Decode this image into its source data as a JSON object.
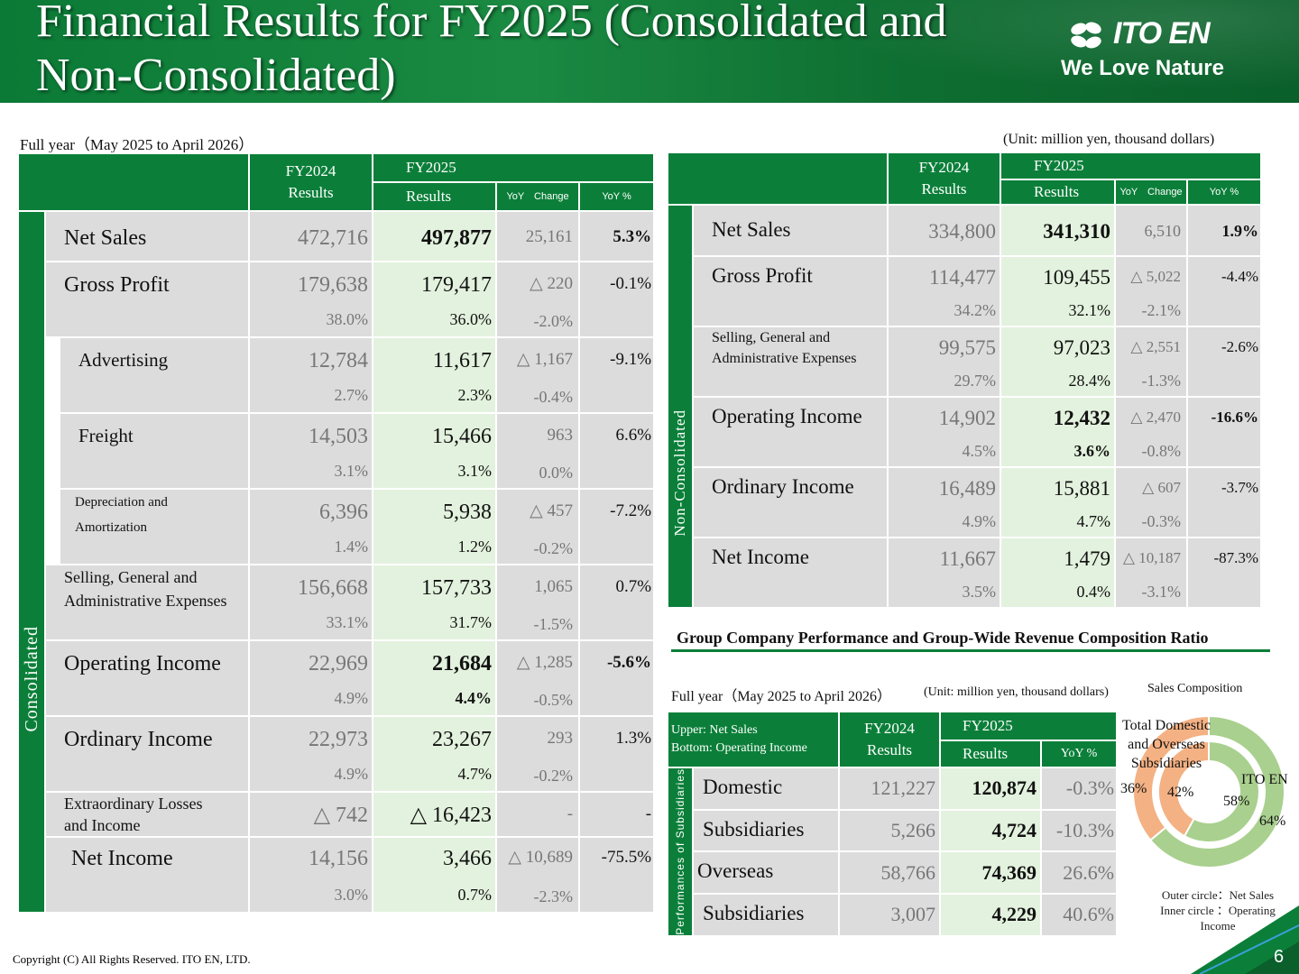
{
  "header": {
    "title_line1": "Financial Results for FY2025 (Consolidated and",
    "title_line2": "Non-Consolidated)",
    "logo_name": "ITO EN",
    "logo_tagline": "We Love Nature",
    "logo_icon": "leaf-logo-icon"
  },
  "captions": {
    "period": "Full year（May 2025 to April 2026）",
    "unit": "(Unit: million yen, thousand dollars)"
  },
  "consolidated": {
    "side_label": "Consolidated",
    "headers": {
      "fy2024": "FY2024",
      "fy2024_sub": "Results",
      "fy2025": "FY2025",
      "fy2025_sub": "Results",
      "yoy_change": "YoY　Change",
      "yoy_pct": "YoY %"
    },
    "rows": [
      {
        "label": "Net Sales",
        "fy2024": "472,716",
        "fy2025": "497,877",
        "change": "25,161",
        "pct": "5.3%"
      },
      {
        "label": "Gross Profit",
        "fy2024": "179,638",
        "fy2024_ratio": "38.0%",
        "fy2025": "179,417",
        "fy2025_ratio": "36.0%",
        "change": "△ 220",
        "change_ratio": "-2.0%",
        "pct": "-0.1%"
      },
      {
        "label": "Advertising",
        "fy2024": "12,784",
        "fy2024_ratio": "2.7%",
        "fy2025": "11,617",
        "fy2025_ratio": "2.3%",
        "change": "△ 1,167",
        "change_ratio": "-0.4%",
        "pct": "-9.1%"
      },
      {
        "label": "Freight",
        "fy2024": "14,503",
        "fy2024_ratio": "3.1%",
        "fy2025": "15,466",
        "fy2025_ratio": "3.1%",
        "change": "963",
        "change_ratio": "0.0%",
        "pct": "6.6%"
      },
      {
        "label_line1": "Depreciation and",
        "label_line2": "Amortization",
        "fy2024": "6,396",
        "fy2024_ratio": "1.4%",
        "fy2025": "5,938",
        "fy2025_ratio": "1.2%",
        "change": "△ 457",
        "change_ratio": "-0.2%",
        "pct": "-7.2%"
      },
      {
        "label_line1": "Selling, General and",
        "label_line2": "Administrative Expenses",
        "fy2024": "156,668",
        "fy2024_ratio": "33.1%",
        "fy2025": "157,733",
        "fy2025_ratio": "31.7%",
        "change": "1,065",
        "change_ratio": "-1.5%",
        "pct": "0.7%"
      },
      {
        "label": "Operating Income",
        "fy2024": "22,969",
        "fy2024_ratio": "4.9%",
        "fy2025": "21,684",
        "fy2025_ratio": "4.4%",
        "change": "△ 1,285",
        "change_ratio": "-0.5%",
        "pct": "-5.6%"
      },
      {
        "label": "Ordinary Income",
        "fy2024": "22,973",
        "fy2024_ratio": "4.9%",
        "fy2025": "23,267",
        "fy2025_ratio": "4.7%",
        "change": "293",
        "change_ratio": "-0.2%",
        "pct": "1.3%"
      },
      {
        "label_line1": "Extraordinary Losses",
        "label_line2": "and Income",
        "fy2024": "△ 742",
        "fy2025": "△ 16,423",
        "change": "-",
        "pct": "-"
      },
      {
        "label": "Net Income",
        "fy2024": "14,156",
        "fy2024_ratio": "3.0%",
        "fy2025": "3,466",
        "fy2025_ratio": "0.7%",
        "change": "△ 10,689",
        "change_ratio": "-2.3%",
        "pct": "-75.5%"
      }
    ]
  },
  "non_consolidated": {
    "side_label": "Non-Consolidated",
    "headers": {
      "fy2024": "FY2024",
      "fy2024_sub": "Results",
      "fy2025": "FY2025",
      "fy2025_sub": "Results",
      "yoy_change": "YoY　Change",
      "yoy_pct": "YoY %"
    },
    "rows": [
      {
        "label": "Net Sales",
        "fy2024": "334,800",
        "fy2025": "341,310",
        "change": "6,510",
        "pct": "1.9%"
      },
      {
        "label": "Gross Profit",
        "fy2024": "114,477",
        "fy2024_ratio": "34.2%",
        "fy2025": "109,455",
        "fy2025_ratio": "32.1%",
        "change": "△ 5,022",
        "change_ratio": "-2.1%",
        "pct": "-4.4%"
      },
      {
        "label_line1": "Selling, General and",
        "label_line2": "Administrative Expenses",
        "fy2024": "99,575",
        "fy2024_ratio": "29.7%",
        "fy2025": "97,023",
        "fy2025_ratio": "28.4%",
        "change": "△ 2,551",
        "change_ratio": "-1.3%",
        "pct": "-2.6%"
      },
      {
        "label": "Operating Income",
        "fy2024": "14,902",
        "fy2024_ratio": "4.5%",
        "fy2025": "12,432",
        "fy2025_ratio": "3.6%",
        "change": "△ 2,470",
        "change_ratio": "-0.8%",
        "pct": "-16.6%"
      },
      {
        "label": "Ordinary Income",
        "fy2024": "16,489",
        "fy2024_ratio": "4.9%",
        "fy2025": "15,881",
        "fy2025_ratio": "4.7%",
        "change": "△ 607",
        "change_ratio": "-0.3%",
        "pct": "-3.7%"
      },
      {
        "label": "Net Income",
        "fy2024": "11,667",
        "fy2024_ratio": "3.5%",
        "fy2025": "1,479",
        "fy2025_ratio": "0.4%",
        "change": "△ 10,187",
        "change_ratio": "-3.1%",
        "pct": "-87.3%"
      }
    ]
  },
  "group": {
    "section_title": "Group Company Performance and Group-Wide Revenue Composition Ratio",
    "period": "Full year（May 2025 to April 2026）",
    "unit": "(Unit: million yen, thousand dollars)",
    "legend_line1": "Upper: Net Sales",
    "legend_line2": "Bottom: Operating Income",
    "side_label": "Performances of Subsidiaries",
    "headers": {
      "fy2024": "FY2024",
      "fy2024_sub": "Results",
      "fy2025": "FY2025",
      "fy2025_sub": "Results",
      "yoy_pct": "YoY %"
    },
    "rows": [
      {
        "label": "Domestic",
        "fy2024": "121,227",
        "fy2025": "120,874",
        "pct": "-0.3%"
      },
      {
        "label": "Subsidiaries",
        "fy2024": "5,266",
        "fy2025": "4,724",
        "pct": "-10.3%"
      },
      {
        "label": "Overseas",
        "fy2024": "58,766",
        "fy2025": "74,369",
        "pct": "26.6%"
      },
      {
        "label": "Subsidiaries",
        "fy2024": "3,007",
        "fy2025": "4,229",
        "pct": "40.6%"
      }
    ]
  },
  "chart_data": {
    "type": "pie",
    "title": "Sales Composition",
    "series": [
      {
        "name": "Outer circle：Net Sales",
        "values": [
          64,
          36
        ],
        "labels": [
          "64%",
          "36%"
        ]
      },
      {
        "name": "Inner circle ：Operating Income",
        "values": [
          58,
          42
        ],
        "labels": [
          "58%",
          "42%"
        ]
      }
    ],
    "categories": [
      "ITO EN",
      "Total Domestic and Overseas Subsidiaries"
    ],
    "category_label_1": "ITO EN",
    "category_label_2_line1": "Total Domestic",
    "category_label_2_line2": "and Overseas",
    "category_label_2_line3": "Subsidiaries",
    "legend_line1": "Outer circle：Net Sales",
    "legend_line2": "Inner circle ：Operating",
    "legend_line3": "Income",
    "colors": {
      "ito_en": "#a9d08e",
      "subsidiaries": "#f4b183"
    }
  },
  "footer": {
    "copyright": "Copyright (C) All Rights Reserved. ITO EN, LTD.",
    "page_number": "6"
  }
}
